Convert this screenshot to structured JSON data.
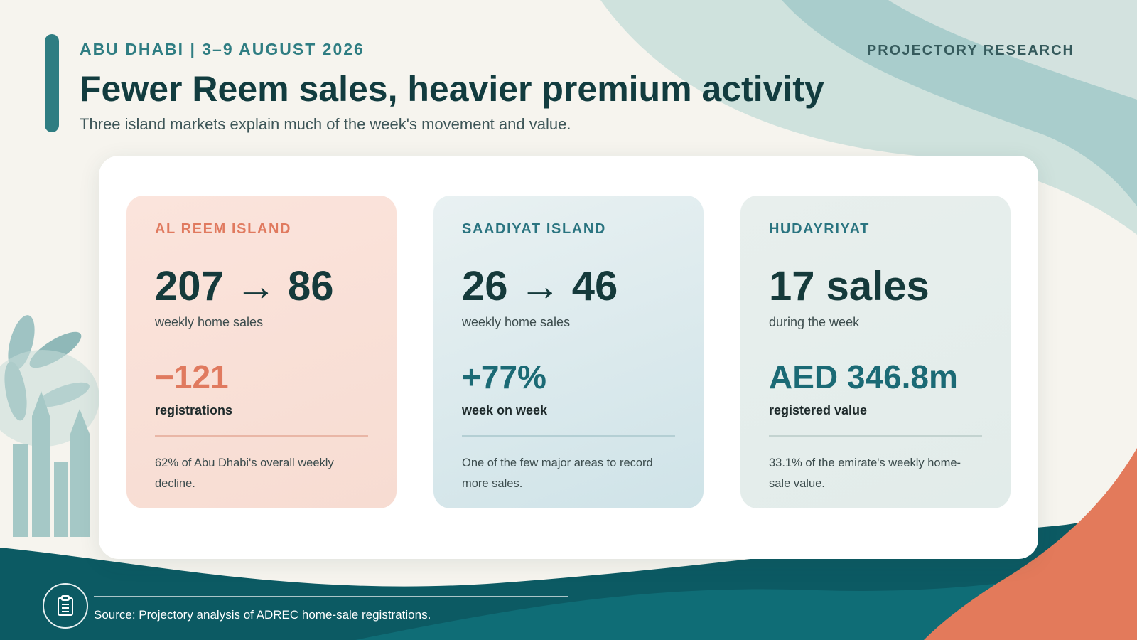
{
  "header": {
    "kicker": "ABU DHABI | 3–9 AUGUST 2026",
    "brand": "PROJECTORY RESEARCH",
    "title": "Fewer Reem sales, heavier premium activity",
    "subtitle": "Three island markets explain much of the week's movement and value."
  },
  "cards": [
    {
      "label": "AL REEM ISLAND",
      "big": "207 → 86",
      "big_sub": "weekly home sales",
      "mid": "−121",
      "mid_sub": "registrations",
      "note": "62% of Abu Dhabi's overall weekly decline."
    },
    {
      "label": "SAADIYAT ISLAND",
      "big": "26 → 46",
      "big_sub": "weekly home sales",
      "mid": "+77%",
      "mid_sub": "week on week",
      "note": "One of the few major areas to record more sales."
    },
    {
      "label": "HUDAYRIYAT",
      "big": "17 sales",
      "big_sub": "during the week",
      "mid": "AED 346.8m",
      "mid_sub": "registered value",
      "note": "33.1% of the emirate's weekly home-sale value."
    }
  ],
  "footer": {
    "icon": "clipboard-icon",
    "source": "Source: Projectory analysis of ADREC home-sale registrations."
  },
  "colors": {
    "teal": "#2f7d82",
    "dark_teal": "#0c5a63",
    "coral": "#e07a5f",
    "title": "#123c3f"
  }
}
